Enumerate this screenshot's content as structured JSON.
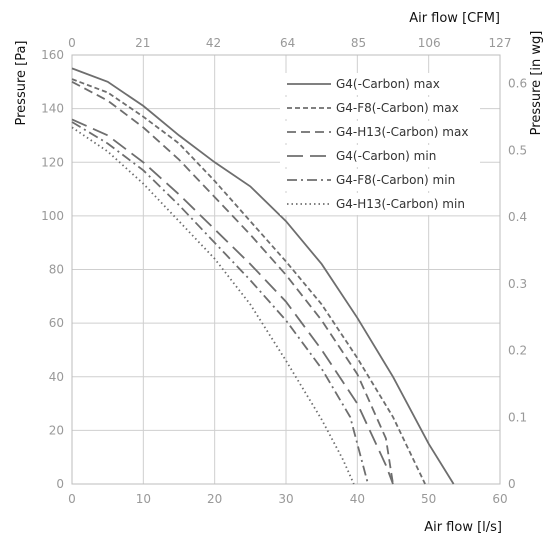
{
  "chart_data": {
    "type": "line",
    "title": "",
    "xlabel": "Air flow [l/s]",
    "ylabel": "Pressure [Pa]",
    "x2label": "Air flow [CFM]",
    "y2label": "Pressure [in wg]",
    "xlim": [
      0,
      60
    ],
    "ylim": [
      0,
      160
    ],
    "x2lim": [
      0,
      127
    ],
    "y2lim": [
      0,
      0.643
    ],
    "xticks": [
      0,
      10,
      20,
      30,
      40,
      50,
      60
    ],
    "yticks": [
      0,
      20,
      40,
      60,
      80,
      100,
      120,
      140,
      160
    ],
    "x2ticks": [
      0,
      21,
      42,
      64,
      85,
      106,
      127
    ],
    "y2ticks": [
      0,
      0.1,
      0.2,
      0.3,
      0.4,
      0.5,
      0.6
    ],
    "grid": true,
    "legend_position": "top-right",
    "series": [
      {
        "name": "G4(-Carbon) max",
        "dash": "solid",
        "points": [
          [
            0,
            155
          ],
          [
            5,
            150
          ],
          [
            10,
            141
          ],
          [
            15,
            130
          ],
          [
            20,
            120
          ],
          [
            25,
            111
          ],
          [
            30,
            98
          ],
          [
            35,
            82
          ],
          [
            40,
            62
          ],
          [
            45,
            40
          ],
          [
            50,
            15
          ],
          [
            53.5,
            0
          ]
        ]
      },
      {
        "name": "G4-F8(-Carbon) max",
        "dash": "dash-short",
        "points": [
          [
            0,
            151
          ],
          [
            5,
            146
          ],
          [
            10,
            137
          ],
          [
            15,
            127
          ],
          [
            20,
            113
          ],
          [
            25,
            98
          ],
          [
            30,
            83
          ],
          [
            35,
            67
          ],
          [
            40,
            47
          ],
          [
            45,
            25
          ],
          [
            49.5,
            0
          ]
        ]
      },
      {
        "name": "G4-H13(-Carbon) max",
        "dash": "dash-medium",
        "points": [
          [
            0,
            150
          ],
          [
            5,
            143
          ],
          [
            10,
            133
          ],
          [
            15,
            121
          ],
          [
            20,
            107
          ],
          [
            25,
            93
          ],
          [
            30,
            78
          ],
          [
            35,
            61
          ],
          [
            40,
            41
          ],
          [
            44,
            17
          ],
          [
            45,
            0
          ]
        ]
      },
      {
        "name": "G4(-Carbon) min",
        "dash": "dash-long",
        "points": [
          [
            0,
            136
          ],
          [
            5,
            130
          ],
          [
            10,
            120
          ],
          [
            15,
            108
          ],
          [
            20,
            95
          ],
          [
            25,
            82
          ],
          [
            30,
            68
          ],
          [
            35,
            50
          ],
          [
            40,
            30
          ],
          [
            44,
            7
          ],
          [
            45,
            0
          ]
        ]
      },
      {
        "name": "G4-F8(-Carbon) min",
        "dash": "dash-dot",
        "points": [
          [
            0,
            135
          ],
          [
            5,
            127
          ],
          [
            10,
            117
          ],
          [
            15,
            104
          ],
          [
            20,
            90
          ],
          [
            25,
            76
          ],
          [
            30,
            61
          ],
          [
            35,
            43
          ],
          [
            39,
            25
          ],
          [
            41.5,
            0
          ]
        ]
      },
      {
        "name": "G4-H13(-Carbon) min",
        "dash": "dotted",
        "points": [
          [
            0,
            133
          ],
          [
            5,
            124
          ],
          [
            10,
            112
          ],
          [
            15,
            98
          ],
          [
            20,
            84
          ],
          [
            25,
            67
          ],
          [
            30,
            46
          ],
          [
            35,
            24
          ],
          [
            38,
            9
          ],
          [
            39.5,
            0
          ]
        ]
      }
    ]
  }
}
